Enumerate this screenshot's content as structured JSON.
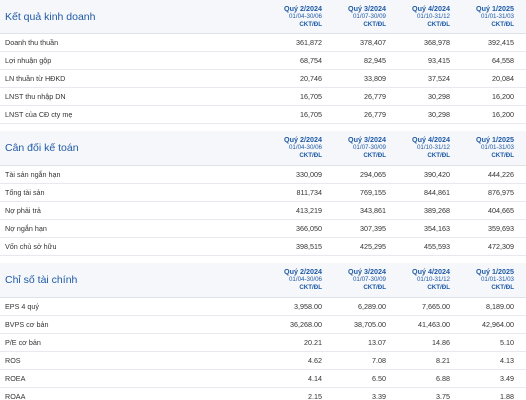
{
  "periods": [
    {
      "quarter": "Quý 2/2024",
      "range": "01/04-30/06",
      "unit": "CKT/ĐL"
    },
    {
      "quarter": "Quý 3/2024",
      "range": "01/07-30/09",
      "unit": "CKT/ĐL"
    },
    {
      "quarter": "Quý 4/2024",
      "range": "01/10-31/12",
      "unit": "CKT/ĐL"
    },
    {
      "quarter": "Quý 1/2025",
      "range": "01/01-31/03",
      "unit": "CKT/ĐL"
    }
  ],
  "sections": [
    {
      "title": "Kết quả kinh doanh",
      "rows": [
        {
          "label": "Doanh thu thuần",
          "values": [
            "361,872",
            "378,407",
            "368,978",
            "392,415"
          ]
        },
        {
          "label": "Lợi nhuận gộp",
          "values": [
            "68,754",
            "82,945",
            "93,415",
            "64,558"
          ]
        },
        {
          "label": "LN thuần từ HĐKD",
          "values": [
            "20,746",
            "33,809",
            "37,524",
            "20,084"
          ]
        },
        {
          "label": "LNST thu nhập DN",
          "values": [
            "16,705",
            "26,779",
            "30,298",
            "16,200"
          ]
        },
        {
          "label": "LNST của CĐ cty mẹ",
          "values": [
            "16,705",
            "26,779",
            "30,298",
            "16,200"
          ]
        }
      ]
    },
    {
      "title": "Cân đối kế toán",
      "rows": [
        {
          "label": "Tài sản ngắn hạn",
          "values": [
            "330,009",
            "294,065",
            "390,420",
            "444,226"
          ]
        },
        {
          "label": "Tổng tài sản",
          "values": [
            "811,734",
            "769,155",
            "844,861",
            "876,975"
          ]
        },
        {
          "label": "Nợ phải trả",
          "values": [
            "413,219",
            "343,861",
            "389,268",
            "404,665"
          ]
        },
        {
          "label": "Nợ ngắn hạn",
          "values": [
            "366,050",
            "307,395",
            "354,163",
            "359,693"
          ]
        },
        {
          "label": "Vốn chủ sở hữu",
          "values": [
            "398,515",
            "425,295",
            "455,593",
            "472,309"
          ]
        }
      ]
    },
    {
      "title": "Chỉ số tài chính",
      "rows": [
        {
          "label": "EPS 4 quý",
          "values": [
            "3,958.00",
            "6,289.00",
            "7,665.00",
            "8,189.00"
          ]
        },
        {
          "label": "BVPS cơ bản",
          "values": [
            "36,268.00",
            "38,705.00",
            "41,463.00",
            "42,964.00"
          ]
        },
        {
          "label": "P/E cơ bản",
          "values": [
            "20.21",
            "13.07",
            "14.86",
            "5.10"
          ]
        },
        {
          "label": "ROS",
          "values": [
            "4.62",
            "7.08",
            "8.21",
            "4.13"
          ]
        },
        {
          "label": "ROEA",
          "values": [
            "4.14",
            "6.50",
            "6.88",
            "3.49"
          ]
        },
        {
          "label": "ROAA",
          "values": [
            "2.15",
            "3.39",
            "3.75",
            "1.88"
          ]
        }
      ]
    }
  ]
}
